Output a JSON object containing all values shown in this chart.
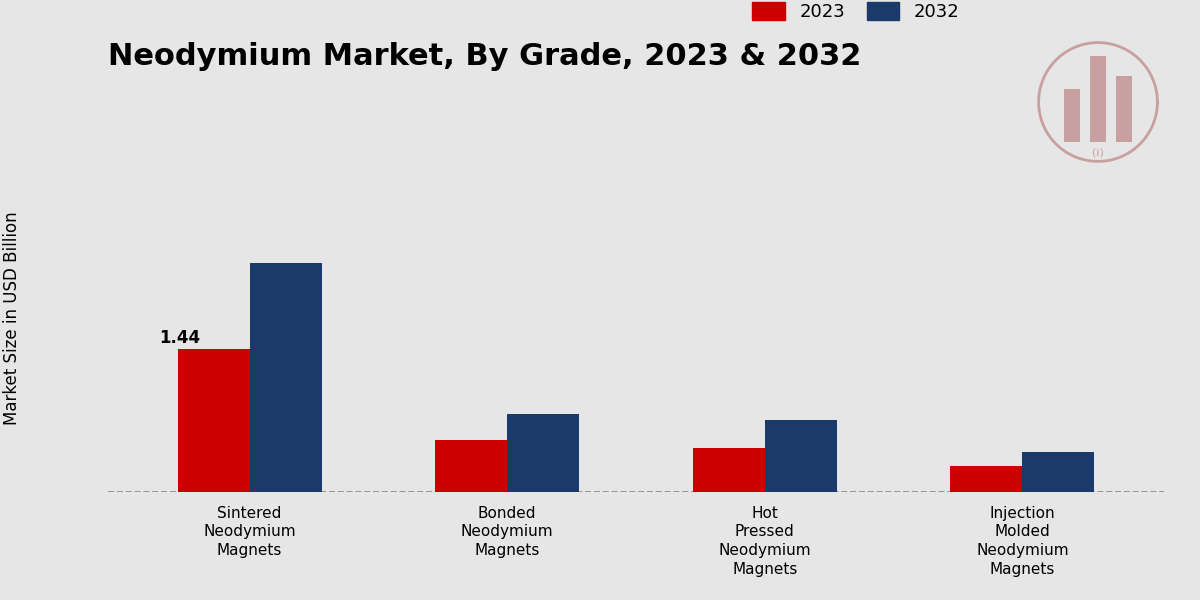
{
  "title": "Neodymium Market, By Grade, 2023 & 2032",
  "ylabel": "Market Size in USD Billion",
  "categories": [
    "Sintered\nNeodymium\nMagnets",
    "Bonded\nNeodymium\nMagnets",
    "Hot\nPressed\nNeodymium\nMagnets",
    "Injection\nMolded\nNeodymium\nMagnets"
  ],
  "values_2023": [
    1.44,
    0.52,
    0.44,
    0.26
  ],
  "values_2032": [
    2.3,
    0.78,
    0.72,
    0.4
  ],
  "color_2023": "#cc0000",
  "color_2032": "#1a3a6b",
  "annotation_label": "1.44",
  "background_color": "#e6e6e6",
  "bar_width": 0.28,
  "ylim": [
    0,
    3.5
  ],
  "legend_labels": [
    "2023",
    "2032"
  ],
  "title_fontsize": 22,
  "ylabel_fontsize": 12,
  "tick_fontsize": 11,
  "bottom_bar_color": "#cc0000",
  "logo_color": "#d4a0a0"
}
